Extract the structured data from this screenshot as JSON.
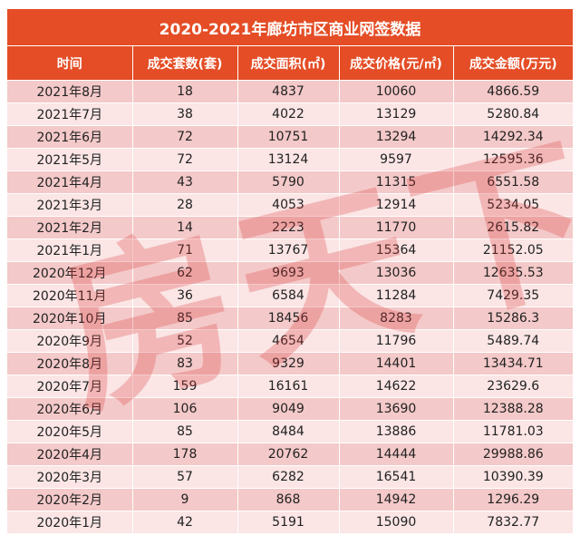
{
  "title": "2020-2021年廊坊市区商业网签数据",
  "watermark": "房天下",
  "colors": {
    "header": "#e44d26",
    "row_dark": "#f4c9c9",
    "row_light": "#fbe5e5"
  },
  "columns": [
    "时间",
    "成交套数(套)",
    "成交面积(㎡)",
    "成交价格(元/㎡)",
    "成交金额(万元)"
  ],
  "rows": [
    [
      "2021年8月",
      "18",
      "4837",
      "10060",
      "4866.59"
    ],
    [
      "2021年7月",
      "38",
      "4022",
      "13129",
      "5280.84"
    ],
    [
      "2021年6月",
      "72",
      "10751",
      "13294",
      "14292.34"
    ],
    [
      "2021年5月",
      "72",
      "13124",
      "9597",
      "12595.36"
    ],
    [
      "2021年4月",
      "43",
      "5790",
      "11315",
      "6551.58"
    ],
    [
      "2021年3月",
      "28",
      "4053",
      "12914",
      "5234.05"
    ],
    [
      "2021年2月",
      "14",
      "2223",
      "11770",
      "2615.82"
    ],
    [
      "2021年1月",
      "71",
      "13767",
      "15364",
      "21152.05"
    ],
    [
      "2020年12月",
      "62",
      "9693",
      "13036",
      "12635.53"
    ],
    [
      "2020年11月",
      "36",
      "6584",
      "11284",
      "7429.35"
    ],
    [
      "2020年10月",
      "85",
      "18456",
      "8283",
      "15286.3"
    ],
    [
      "2020年9月",
      "52",
      "4654",
      "11796",
      "5489.74"
    ],
    [
      "2020年8月",
      "83",
      "9329",
      "14401",
      "13434.71"
    ],
    [
      "2020年7月",
      "159",
      "16161",
      "14622",
      "23629.6"
    ],
    [
      "2020年6月",
      "106",
      "9049",
      "13690",
      "12388.28"
    ],
    [
      "2020年5月",
      "85",
      "8484",
      "13886",
      "11781.03"
    ],
    [
      "2020年4月",
      "178",
      "20762",
      "14444",
      "29988.86"
    ],
    [
      "2020年3月",
      "57",
      "6282",
      "16541",
      "10390.39"
    ],
    [
      "2020年2月",
      "9",
      "868",
      "14942",
      "1296.29"
    ],
    [
      "2020年1月",
      "42",
      "5191",
      "15090",
      "7832.77"
    ]
  ]
}
